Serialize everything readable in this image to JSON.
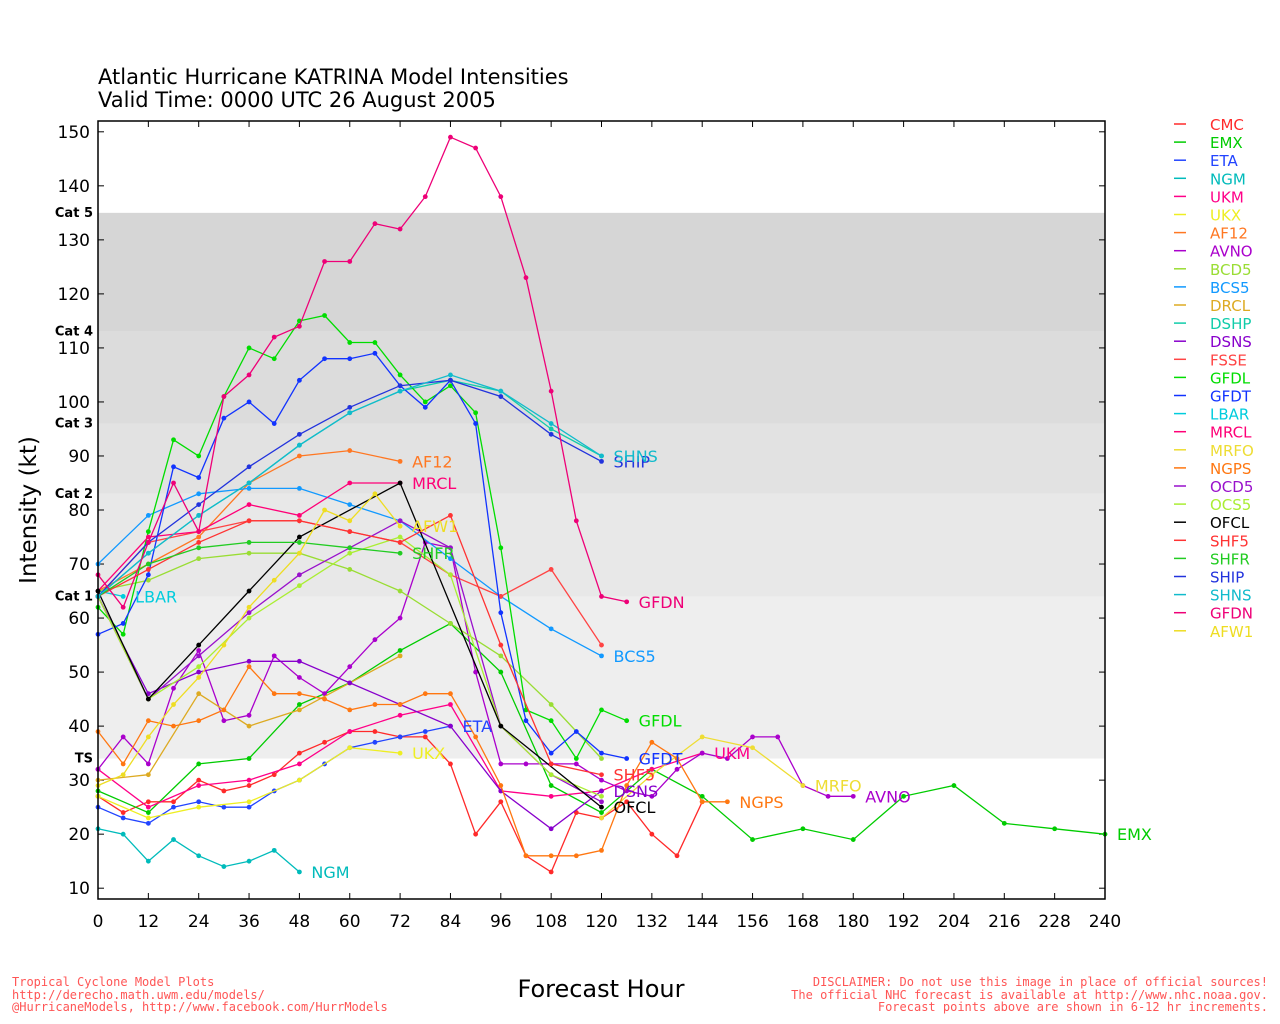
{
  "title": {
    "line1": "Atlantic Hurricane KATRINA Model Intensities",
    "line2": "Valid Time: 0000 UTC 26 August 2005"
  },
  "footer": {
    "left1": "Tropical Cyclone Model Plots",
    "left2": "http://derecho.math.uwm.edu/models/",
    "left3": "@HurricaneModels, http://www.facebook.com/HurrModels",
    "right1": "DISCLAIMER: Do not use this image in place of official sources!",
    "right2": "The official NHC forecast is available at http://www.nhc.noaa.gov.",
    "right3": "Forecast points above are shown in 6-12 hr increments."
  },
  "chart_data": {
    "type": "line",
    "xlabel": "Forecast Hour",
    "ylabel": "Intensity (kt)",
    "xlim": [
      0,
      240
    ],
    "ylim": [
      8,
      152
    ],
    "xticks": [
      0,
      12,
      24,
      36,
      48,
      60,
      72,
      84,
      96,
      108,
      120,
      132,
      144,
      156,
      168,
      180,
      192,
      204,
      216,
      228,
      240
    ],
    "yticks": [
      10,
      20,
      30,
      40,
      50,
      60,
      70,
      80,
      90,
      100,
      110,
      120,
      130,
      140,
      150
    ],
    "categories": [
      {
        "label": "TS",
        "from": 34,
        "to": 64,
        "color": "#eeeeee"
      },
      {
        "label": "Cat 1",
        "from": 64,
        "to": 83,
        "color": "#e8e8e8"
      },
      {
        "label": "Cat 2",
        "from": 83,
        "to": 96,
        "color": "#e2e2e2"
      },
      {
        "label": "Cat 3",
        "from": 96,
        "to": 113,
        "color": "#dcdcdc"
      },
      {
        "label": "Cat 4",
        "from": 113,
        "to": 135,
        "color": "#d6d6d6"
      },
      {
        "label": "Cat 5",
        "from": 135,
        "to": 152,
        "color": null
      }
    ],
    "series": [
      {
        "name": "CMC",
        "color": "#ff2a2a",
        "end_label": "",
        "x": [
          0,
          6,
          12,
          18,
          24,
          30,
          36,
          42,
          48,
          54,
          60,
          66,
          72,
          78,
          84,
          90,
          96,
          102,
          108,
          114,
          120,
          126,
          132,
          138,
          144
        ],
        "y": [
          27,
          24,
          26,
          26,
          30,
          28,
          29,
          31,
          35,
          37,
          39,
          39,
          38,
          38,
          33,
          20,
          26,
          16,
          13,
          24,
          23,
          26,
          20,
          16,
          26
        ]
      },
      {
        "name": "EMX",
        "color": "#00cc00",
        "end_label": "EMX",
        "x": [
          0,
          12,
          24,
          36,
          48,
          60,
          72,
          84,
          96,
          108,
          120,
          132,
          144,
          156,
          168,
          180,
          192,
          204,
          216,
          228,
          240
        ],
        "y": [
          28,
          24,
          33,
          34,
          44,
          48,
          54,
          59,
          50,
          29,
          24,
          32,
          27,
          19,
          21,
          19,
          27,
          29,
          22,
          21,
          20
        ]
      },
      {
        "name": "ETA",
        "color": "#2244ff",
        "end_label": "ETA",
        "x": [
          0,
          6,
          12,
          18,
          24,
          30,
          36,
          42,
          48,
          54,
          60,
          66,
          72,
          78,
          84
        ],
        "y": [
          25,
          23,
          22,
          25,
          26,
          25,
          25,
          28,
          30,
          33,
          36,
          37,
          38,
          39,
          40
        ]
      },
      {
        "name": "NGM",
        "color": "#00bbbb",
        "end_label": "NGM",
        "x": [
          0,
          6,
          12,
          18,
          24,
          30,
          36,
          42,
          48
        ],
        "y": [
          21,
          20,
          15,
          19,
          16,
          14,
          15,
          17,
          13
        ]
      },
      {
        "name": "UKM",
        "color": "#ff0088",
        "end_label": "UKM",
        "x": [
          0,
          12,
          24,
          36,
          48,
          60,
          72,
          84,
          96,
          108,
          120,
          132,
          144
        ],
        "y": [
          32,
          25,
          29,
          30,
          33,
          39,
          42,
          44,
          28,
          27,
          28,
          32,
          35
        ]
      },
      {
        "name": "UKX",
        "color": "#eeee22",
        "end_label": "UKX",
        "x": [
          0,
          12,
          24,
          36,
          48,
          60,
          72
        ],
        "y": [
          27,
          23,
          25,
          26,
          30,
          36,
          35
        ]
      },
      {
        "name": "AF12",
        "color": "#ff7722",
        "end_label": "AF12",
        "x": [
          0,
          12,
          24,
          36,
          48,
          60,
          72
        ],
        "y": [
          65,
          70,
          75,
          85,
          90,
          91,
          89
        ]
      },
      {
        "name": "AVNO",
        "color": "#aa00cc",
        "end_label": "AVNO",
        "x": [
          0,
          6,
          12,
          18,
          24,
          30,
          36,
          42,
          48,
          54,
          60,
          66,
          72,
          78,
          84,
          90,
          96,
          102,
          108,
          114,
          120,
          126,
          132,
          138,
          144,
          150,
          156,
          162,
          168,
          174,
          180
        ],
        "y": [
          32,
          38,
          33,
          47,
          54,
          41,
          42,
          53,
          49,
          46,
          51,
          56,
          60,
          74,
          73,
          50,
          33,
          33,
          33,
          33,
          30,
          28,
          27,
          32,
          35,
          34,
          38,
          38,
          29,
          27,
          27
        ]
      },
      {
        "name": "BCD5",
        "color": "#99dd33",
        "end_label": "",
        "x": [
          0,
          12,
          24,
          36,
          48,
          60,
          72,
          84,
          96,
          108,
          120
        ],
        "y": [
          65,
          67,
          71,
          72,
          72,
          69,
          65,
          59,
          53,
          44,
          34
        ]
      },
      {
        "name": "BCS5",
        "color": "#1199ff",
        "end_label": "BCS5",
        "x": [
          0,
          12,
          24,
          36,
          48,
          60,
          72,
          84,
          96,
          108,
          120
        ],
        "y": [
          70,
          79,
          83,
          84,
          84,
          81,
          78,
          71,
          64,
          58,
          53
        ]
      },
      {
        "name": "DRCL",
        "color": "#ddaa22",
        "end_label": "",
        "x": [
          0,
          12,
          24,
          36,
          48,
          60,
          72
        ],
        "y": [
          30,
          31,
          46,
          40,
          43,
          48,
          53
        ]
      },
      {
        "name": "DSHP",
        "color": "#11ccaa",
        "end_label": "",
        "x": [
          0,
          12,
          24,
          36,
          48,
          60,
          72,
          84,
          96,
          108,
          120
        ],
        "y": [
          64,
          72,
          79,
          85,
          92,
          98,
          102,
          104,
          102,
          95,
          90
        ]
      },
      {
        "name": "DSNS",
        "color": "#8800cc",
        "end_label": "DSNS",
        "x": [
          0,
          12,
          24,
          36,
          48,
          60,
          72,
          84,
          96,
          108,
          120
        ],
        "y": [
          64,
          46,
          50,
          52,
          52,
          48,
          44,
          40,
          28,
          21,
          28
        ]
      },
      {
        "name": "FSSE",
        "color": "#ff4444",
        "end_label": "",
        "x": [
          0,
          12,
          24,
          36,
          48,
          60,
          72,
          84,
          96,
          108,
          120
        ],
        "y": [
          64,
          74,
          76,
          78,
          78,
          76,
          74,
          68,
          64,
          69,
          55
        ]
      },
      {
        "name": "GFDL",
        "color": "#00dd00",
        "end_label": "GFDL",
        "x": [
          0,
          6,
          12,
          18,
          24,
          30,
          36,
          42,
          48,
          54,
          60,
          66,
          72,
          78,
          84,
          90,
          96,
          102,
          108,
          114,
          120,
          126
        ],
        "y": [
          62,
          57,
          76,
          93,
          90,
          101,
          110,
          108,
          115,
          116,
          111,
          111,
          105,
          100,
          103,
          98,
          73,
          43,
          41,
          34,
          43,
          41
        ]
      },
      {
        "name": "GFDT",
        "color": "#1133ff",
        "end_label": "GFDT",
        "x": [
          0,
          6,
          12,
          18,
          24,
          30,
          36,
          42,
          48,
          54,
          60,
          66,
          72,
          78,
          84,
          90,
          96,
          102,
          108,
          114,
          120,
          126
        ],
        "y": [
          57,
          59,
          68,
          88,
          86,
          97,
          100,
          96,
          104,
          108,
          108,
          109,
          103,
          99,
          104,
          96,
          61,
          41,
          35,
          39,
          35,
          34
        ]
      },
      {
        "name": "LBAR",
        "color": "#00ccdd",
        "end_label": "LBAR",
        "x": [
          0,
          6
        ],
        "y": [
          65,
          64
        ]
      },
      {
        "name": "MRCL",
        "color": "#ff0077",
        "end_label": "MRCL",
        "x": [
          0,
          12,
          24,
          36,
          48,
          60,
          72
        ],
        "y": [
          65,
          75,
          76,
          81,
          79,
          85,
          85
        ]
      },
      {
        "name": "MRFO",
        "color": "#eedd33",
        "end_label": "MRFO",
        "x": [
          120,
          132,
          144,
          156,
          168
        ],
        "y": [
          23,
          31,
          38,
          36,
          29
        ]
      },
      {
        "name": "NGPS",
        "color": "#ff7711",
        "end_label": "NGPS",
        "x": [
          0,
          6,
          12,
          18,
          24,
          30,
          36,
          42,
          48,
          54,
          60,
          66,
          72,
          78,
          84,
          90,
          96,
          102,
          108,
          114,
          120,
          126,
          132,
          138,
          144,
          150
        ],
        "y": [
          39,
          33,
          41,
          40,
          41,
          43,
          51,
          46,
          46,
          45,
          43,
          44,
          44,
          46,
          46,
          38,
          29,
          16,
          16,
          16,
          17,
          29,
          37,
          34,
          26,
          26
        ]
      },
      {
        "name": "OCD5",
        "color": "#9911cc",
        "end_label": "",
        "x": [
          0,
          12,
          24,
          36,
          48,
          60,
          72,
          84,
          96,
          108,
          120
        ],
        "y": [
          64,
          45,
          53,
          61,
          68,
          73,
          78,
          73,
          40,
          31,
          26
        ]
      },
      {
        "name": "OCS5",
        "color": "#aaee33",
        "end_label": "",
        "x": [
          0,
          12,
          24,
          36,
          48,
          60,
          72,
          84,
          96,
          108,
          120
        ],
        "y": [
          64,
          45,
          51,
          60,
          66,
          72,
          75,
          68,
          40,
          31,
          27
        ]
      },
      {
        "name": "OFCL",
        "color": "#000000",
        "end_label": "OFCL",
        "x": [
          0,
          12,
          24,
          36,
          48,
          72,
          96,
          120
        ],
        "y": [
          65,
          45,
          55,
          65,
          75,
          85,
          40,
          25
        ]
      },
      {
        "name": "SHF5",
        "color": "#ff3333",
        "end_label": "SHF5",
        "x": [
          0,
          12,
          24,
          36,
          48,
          60,
          72,
          84,
          96,
          108,
          120
        ],
        "y": [
          64,
          69,
          74,
          78,
          78,
          76,
          74,
          79,
          55,
          33,
          31
        ]
      },
      {
        "name": "SHFR",
        "color": "#22cc22",
        "end_label": "SHFR",
        "x": [
          0,
          12,
          24,
          36,
          48,
          60,
          72
        ],
        "y": [
          64,
          70,
          73,
          74,
          74,
          73,
          72
        ]
      },
      {
        "name": "SHIP",
        "color": "#2233dd",
        "end_label": "SHIP",
        "x": [
          0,
          12,
          24,
          36,
          48,
          60,
          72,
          84,
          96,
          108,
          120
        ],
        "y": [
          64,
          74,
          81,
          88,
          94,
          99,
          103,
          104,
          101,
          94,
          89
        ]
      },
      {
        "name": "SHNS",
        "color": "#11bbcc",
        "end_label": "SHNS",
        "x": [
          0,
          12,
          24,
          36,
          48,
          60,
          72,
          84,
          96,
          108,
          120
        ],
        "y": [
          64,
          72,
          79,
          85,
          92,
          98,
          102,
          105,
          102,
          96,
          90
        ]
      },
      {
        "name": "GFDN",
        "color": "#ee0077",
        "end_label": "GFDN",
        "x": [
          0,
          6,
          12,
          18,
          24,
          30,
          36,
          42,
          48,
          54,
          60,
          66,
          72,
          78,
          84,
          90,
          96,
          102,
          108,
          114,
          120,
          126
        ],
        "y": [
          68,
          62,
          74,
          85,
          76,
          101,
          105,
          112,
          114,
          126,
          126,
          133,
          132,
          138,
          149,
          147,
          138,
          123,
          102,
          78,
          64,
          63
        ]
      },
      {
        "name": "AFW1",
        "color": "#eedd22",
        "end_label": "AFW1",
        "x": [
          0,
          6,
          12,
          18,
          24,
          30,
          36,
          42,
          48,
          54,
          60,
          66,
          72
        ],
        "y": [
          29,
          31,
          38,
          44,
          49,
          55,
          62,
          67,
          72,
          80,
          78,
          83,
          77
        ]
      }
    ]
  }
}
